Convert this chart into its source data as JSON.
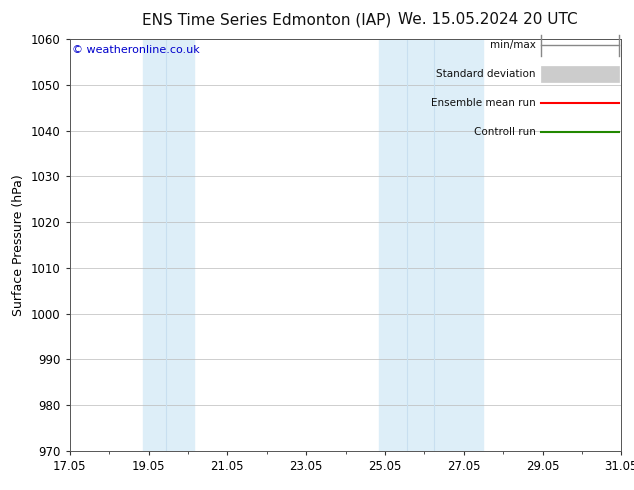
{
  "title_left": "ENS Time Series Edmonton (IAP)",
  "title_right": "We. 15.05.2024 20 UTC",
  "ylabel": "Surface Pressure (hPa)",
  "ylim": [
    970,
    1060
  ],
  "yticks": [
    970,
    980,
    990,
    1000,
    1010,
    1020,
    1030,
    1040,
    1050,
    1060
  ],
  "xtick_labels": [
    "17.05",
    "19.05",
    "21.05",
    "23.05",
    "25.05",
    "27.05",
    "29.05",
    "31.05"
  ],
  "xtick_positions": [
    0,
    2,
    4,
    6,
    8,
    10,
    12,
    14
  ],
  "xlim": [
    0,
    14
  ],
  "shaded_regions": [
    {
      "xmin": 1.85,
      "xmax": 2.45,
      "color": "#ddeeff"
    },
    {
      "xmin": 2.45,
      "xmax": 3.15,
      "color": "#ddeeff"
    },
    {
      "xmin": 7.85,
      "xmax": 8.55,
      "color": "#ddeeff"
    },
    {
      "xmin": 8.55,
      "xmax": 9.25,
      "color": "#ddeeff"
    },
    {
      "xmin": 9.25,
      "xmax": 10.35,
      "color": "#ddeeff"
    }
  ],
  "watermark": "© weatheronline.co.uk",
  "watermark_color": "#0000cc",
  "legend_labels": [
    "min/max",
    "Standard deviation",
    "Ensemble mean run",
    "Controll run"
  ],
  "legend_line_colors": [
    "#888888",
    "#cccccc",
    "#ff0000",
    "#228800"
  ],
  "background_color": "#ffffff",
  "plot_background": "#ffffff",
  "grid_color": "#bbbbbb",
  "tick_color": "#333333",
  "title_fontsize": 11,
  "axis_fontsize": 9,
  "tick_fontsize": 8.5,
  "legend_fontsize": 7.5
}
